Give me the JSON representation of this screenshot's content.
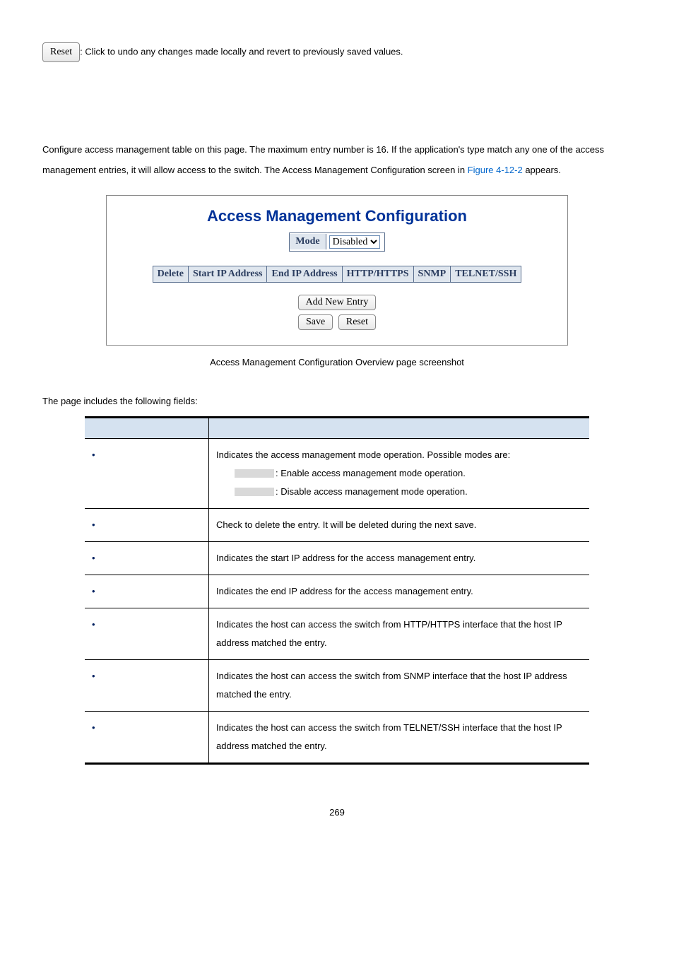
{
  "top": {
    "reset_label": "Reset",
    "reset_text": ": Click to undo any changes made locally and revert to previously saved values."
  },
  "intro": {
    "line1": "Configure access management table on this page. The maximum entry number is 16. If the application's type match any one of the access management entries, it will allow access to the switch. The Access Management Configuration screen in ",
    "link": "Figure 4-12-2",
    "line2": " appears."
  },
  "screenshot": {
    "title": "Access Management Configuration",
    "mode_label": "Mode",
    "mode_value": "Disabled",
    "headers": [
      "Delete",
      "Start IP Address",
      "End IP Address",
      "HTTP/HTTPS",
      "SNMP",
      "TELNET/SSH"
    ],
    "add_entry": "Add New Entry",
    "save": "Save",
    "reset": "Reset"
  },
  "caption": "Access Management Configuration Overview page screenshot",
  "fields_intro": "The page includes the following fields:",
  "table": {
    "rows": [
      {
        "desc_parts": [
          "Indicates the access management mode operation. Possible modes are:",
          ": Enable access management mode operation.",
          ": Disable access management mode operation."
        ],
        "has_gray": true
      },
      {
        "desc_parts": [
          "Check to delete the entry. It will be deleted during the next save."
        ],
        "has_gray": false
      },
      {
        "desc_parts": [
          "Indicates the start IP address for the access management entry."
        ],
        "has_gray": false
      },
      {
        "desc_parts": [
          "Indicates the end IP address for the access management entry."
        ],
        "has_gray": false
      },
      {
        "desc_parts": [
          "Indicates the host can access the switch from HTTP/HTTPS interface that the host IP address matched the entry."
        ],
        "has_gray": false
      },
      {
        "desc_parts": [
          "Indicates the host can access the switch from SNMP interface that the host IP address matched the entry."
        ],
        "has_gray": false
      },
      {
        "desc_parts": [
          "Indicates the host can access the switch from TELNET/SSH interface that the host IP address matched the entry."
        ],
        "has_gray": false
      }
    ]
  },
  "page_number": "269"
}
